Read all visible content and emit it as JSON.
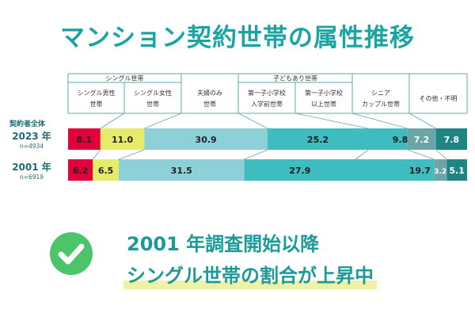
{
  "title": "マンション契約世帯の属性推移",
  "header": {
    "groups": [
      {
        "label": "シングル世帯",
        "span": [
          0,
          1
        ]
      },
      {
        "label": "子どもあり世帯",
        "span": [
          3,
          4
        ]
      }
    ],
    "columns": [
      [
        "シングル男性",
        "世帯"
      ],
      [
        "シングル女性",
        "世帯"
      ],
      [
        "夫婦のみ",
        "世帯"
      ],
      [
        "第一子小学校",
        "入学前世帯"
      ],
      [
        "第一子小学校",
        "以上世帯"
      ],
      [
        "シニア",
        "カップル世帯"
      ],
      [
        "その他・不明"
      ]
    ]
  },
  "row_group_label": "契約者全体",
  "chart_data": {
    "type": "bar",
    "orientation": "horizontal-stacked-100",
    "categories": [
      "シングル男性世帯",
      "シングル女性世帯",
      "夫婦のみ世帯",
      "第一子小学校入学前世帯",
      "第一子小学校以上世帯",
      "シニアカップル世帯",
      "その他・不明"
    ],
    "rows": [
      {
        "label": "2023 年",
        "n": "n=4934",
        "values": [
          8.1,
          11.0,
          30.9,
          25.2,
          9.8,
          7.2,
          7.8
        ],
        "value_labels": [
          "8.1",
          "11.0",
          "30.9",
          "25.2",
          "9.8",
          "7.2",
          "7.8"
        ]
      },
      {
        "label": "2001 年",
        "n": "n=6919",
        "values": [
          6.2,
          6.5,
          31.5,
          27.9,
          19.7,
          3.2,
          5.1
        ],
        "value_labels": [
          "6.2",
          "6.5",
          "31.5",
          "27.9",
          "19.7",
          "3.2",
          "5.1"
        ]
      }
    ],
    "colors": [
      "#e0003a",
      "#e6ec6a",
      "#8dd0d8",
      "#3fbcc0",
      "#3fbcc0",
      "#6aa6a8",
      "#1e8582"
    ],
    "label_colors": [
      "#222222",
      "#222222",
      "#222222",
      "#222222",
      "#222222",
      "#ffffff",
      "#ffffff"
    ]
  },
  "summary": {
    "line1": "2001 年調査開始以降",
    "line2": "シングル世帯の割合が上昇中"
  },
  "icons": {
    "check": "check-circle-icon",
    "check_color": "#4cc46a"
  }
}
